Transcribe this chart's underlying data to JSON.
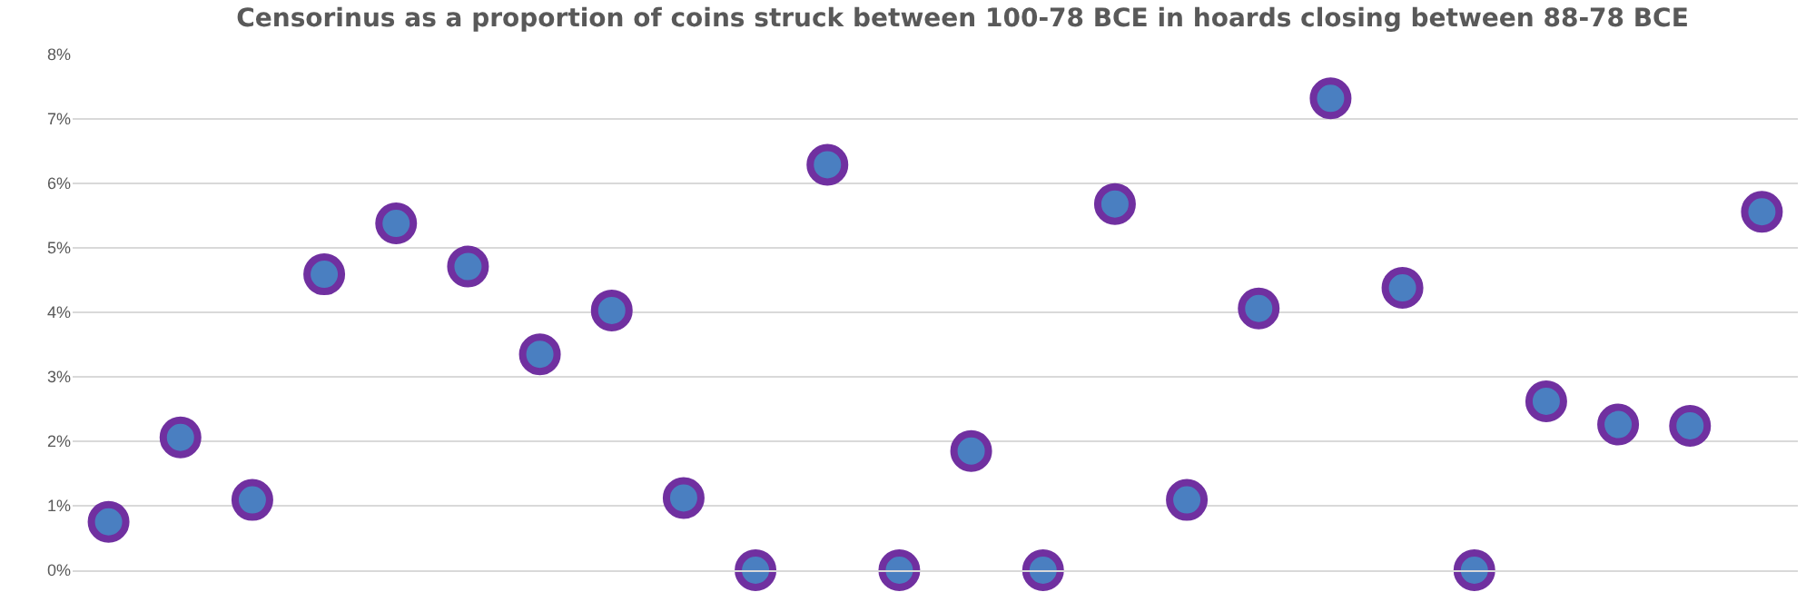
{
  "chart_data": {
    "type": "scatter",
    "title": "Censorinus as a proportion of coins struck between 100-78 BCE in hoards closing between 88-78 BCE",
    "categories": [
      null,
      null,
      null,
      null,
      null,
      null,
      null,
      null,
      null,
      null,
      null,
      null,
      null,
      null,
      null,
      null,
      null,
      null,
      null,
      null,
      null,
      null,
      null,
      null
    ],
    "series": [
      {
        "color": "#4a7fc1",
        "values": [
          0.75,
          2.06,
          1.09,
          4.59,
          5.38,
          4.71,
          3.35,
          4.03,
          1.12,
          0,
          6.29,
          0,
          1.85,
          0,
          5.68,
          1.09,
          4.06,
          7.32,
          4.38,
          0,
          2.62,
          2.26,
          2.24,
          5.56
        ]
      }
    ],
    "ylim": [
      0,
      8
    ],
    "yticks": [
      {
        "value": 0,
        "label": "0%"
      },
      {
        "value": 1,
        "label": "1%"
      },
      {
        "value": 2,
        "label": "2%"
      },
      {
        "value": 3,
        "label": "3%"
      },
      {
        "value": 4,
        "label": "4%"
      },
      {
        "value": 5,
        "label": "5%"
      },
      {
        "value": 6,
        "label": "6%"
      },
      {
        "value": 7,
        "label": "7%"
      },
      {
        "value": 8,
        "label": "8%"
      }
    ],
    "grid": "y",
    "marker": "circle",
    "tick_labels": "y"
  }
}
